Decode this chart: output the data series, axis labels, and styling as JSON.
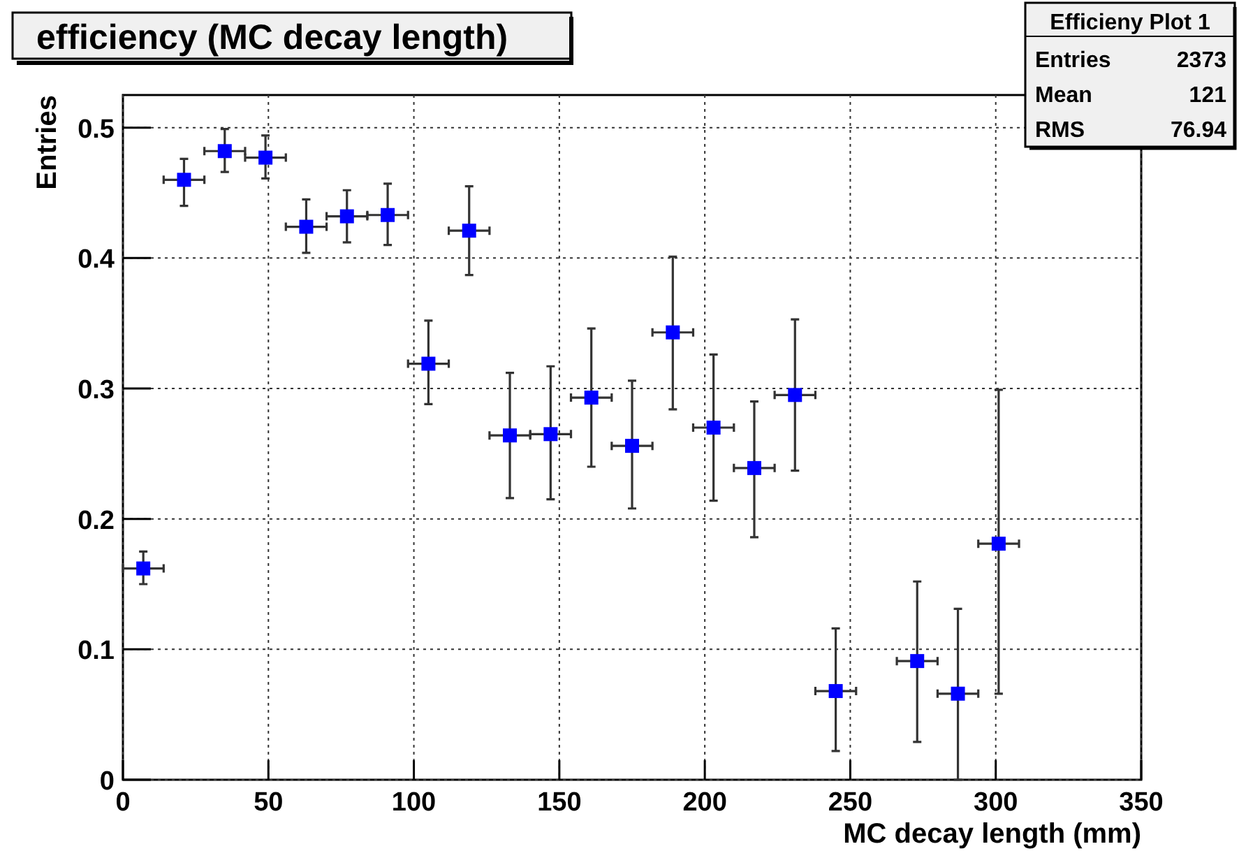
{
  "chart_data": {
    "type": "scatter",
    "title": "efficiency (MC decay length)",
    "xlabel": "MC decay length (mm)",
    "ylabel": "Entries",
    "x": [
      7,
      21,
      35,
      49,
      63,
      77,
      91,
      105,
      119,
      133,
      147,
      161,
      175,
      189,
      203,
      217,
      231,
      245,
      273,
      287,
      301
    ],
    "values": [
      0.162,
      0.46,
      0.482,
      0.477,
      0.424,
      0.432,
      0.433,
      0.319,
      0.421,
      0.264,
      0.265,
      0.293,
      0.256,
      0.343,
      0.27,
      0.239,
      0.295,
      0.068,
      0.091,
      0.066,
      0.181
    ],
    "errors": [
      [
        0.15,
        0.175
      ],
      [
        0.44,
        0.476
      ],
      [
        0.466,
        0.499
      ],
      [
        0.461,
        0.494
      ],
      [
        0.404,
        0.445
      ],
      [
        0.412,
        0.452
      ],
      [
        0.41,
        0.457
      ],
      [
        0.288,
        0.352
      ],
      [
        0.387,
        0.455
      ],
      [
        0.216,
        0.312
      ],
      [
        0.215,
        0.317
      ],
      [
        0.24,
        0.346
      ],
      [
        0.208,
        0.306
      ],
      [
        0.284,
        0.401
      ],
      [
        0.214,
        0.326
      ],
      [
        0.186,
        0.29
      ],
      [
        0.237,
        0.353
      ],
      [
        0.022,
        0.116
      ],
      [
        0.029,
        0.152
      ],
      [
        0,
        0.131
      ],
      [
        0.066,
        0.299
      ]
    ],
    "xerrors": [
      7,
      7,
      7,
      7,
      7,
      7,
      7,
      7,
      7,
      7,
      7,
      7,
      7,
      7,
      7,
      7,
      7,
      7,
      7,
      7,
      7
    ],
    "color": "#0000ff",
    "marker": "square",
    "grid": true,
    "xlim": [
      0,
      350
    ],
    "xticks": [
      0,
      50,
      100,
      150,
      200,
      250,
      300,
      350
    ],
    "ylim": [
      0,
      0.525
    ],
    "yticks": [
      0,
      0.1,
      0.2,
      0.3,
      0.4,
      0.5
    ],
    "annotations": [
      "Efficieny Plot 1",
      "Entries",
      "2373",
      "Mean",
      "121",
      "RMS",
      "76.94"
    ]
  }
}
